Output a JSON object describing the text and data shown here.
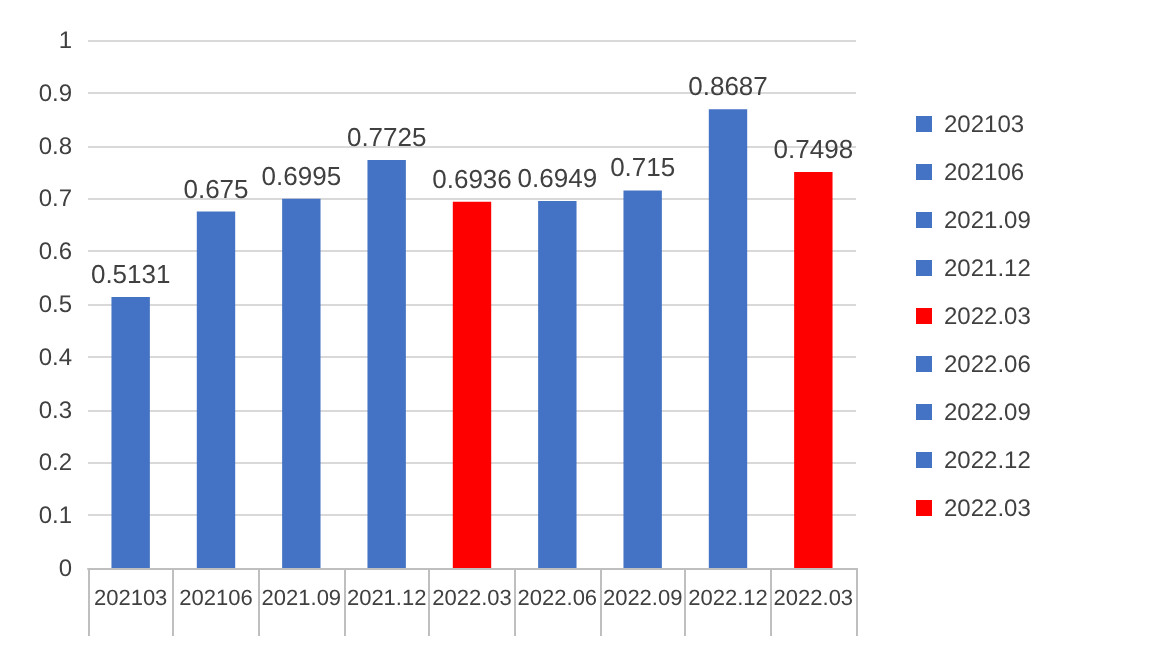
{
  "chart_data": {
    "type": "bar",
    "categories": [
      "202103",
      "202106",
      "2021.09",
      "2021.12",
      "2022.03",
      "2022.06",
      "2022.09",
      "2022.12",
      "2022.03"
    ],
    "series": [
      {
        "name": "202103",
        "color": "#4472c4",
        "values": [
          0.5131,
          null,
          null,
          null,
          null,
          null,
          null,
          null,
          null
        ]
      },
      {
        "name": "202106",
        "color": "#4472c4",
        "values": [
          null,
          0.675,
          null,
          null,
          null,
          null,
          null,
          null,
          null
        ]
      },
      {
        "name": "2021.09",
        "color": "#4472c4",
        "values": [
          null,
          null,
          0.6995,
          null,
          null,
          null,
          null,
          null,
          null
        ]
      },
      {
        "name": "2021.12",
        "color": "#4472c4",
        "values": [
          null,
          null,
          null,
          0.7725,
          null,
          null,
          null,
          null,
          null
        ]
      },
      {
        "name": "2022.03",
        "color": "#ff0000",
        "values": [
          null,
          null,
          null,
          null,
          0.6936,
          null,
          null,
          null,
          null
        ]
      },
      {
        "name": "2022.06",
        "color": "#4472c4",
        "values": [
          null,
          null,
          null,
          null,
          null,
          0.6949,
          null,
          null,
          null
        ]
      },
      {
        "name": "2022.09",
        "color": "#4472c4",
        "values": [
          null,
          null,
          null,
          null,
          null,
          null,
          0.715,
          null,
          null
        ]
      },
      {
        "name": "2022.12",
        "color": "#4472c4",
        "values": [
          null,
          null,
          null,
          null,
          null,
          null,
          null,
          0.8687,
          null
        ]
      },
      {
        "name": "2022.03",
        "color": "#ff0000",
        "values": [
          null,
          null,
          null,
          null,
          null,
          null,
          null,
          null,
          0.7498
        ]
      }
    ],
    "ylim": [
      0,
      1
    ],
    "yticks": [
      0,
      0.1,
      0.2,
      0.3,
      0.4,
      0.5,
      0.6,
      0.7,
      0.8,
      0.9,
      1
    ],
    "grid": "y",
    "legend": "right",
    "data_labels": true
  }
}
